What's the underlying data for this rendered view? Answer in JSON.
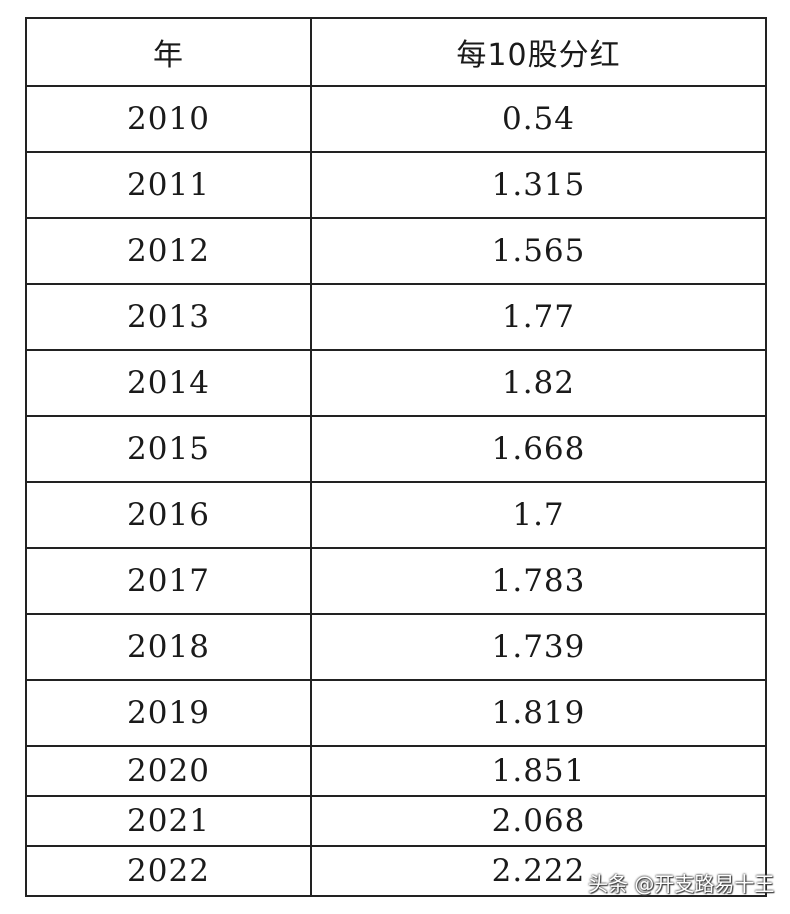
{
  "table": {
    "headers": {
      "year": "年",
      "dividend": "每10股分红"
    },
    "rows": [
      {
        "year": "2010",
        "value": "0.54"
      },
      {
        "year": "2011",
        "value": "1.315"
      },
      {
        "year": "2012",
        "value": "1.565"
      },
      {
        "year": "2013",
        "value": "1.77"
      },
      {
        "year": "2014",
        "value": "1.82"
      },
      {
        "year": "2015",
        "value": "1.668"
      },
      {
        "year": "2016",
        "value": "1.7"
      },
      {
        "year": "2017",
        "value": "1.783"
      },
      {
        "year": "2018",
        "value": "1.739"
      },
      {
        "year": "2019",
        "value": "1.819"
      },
      {
        "year": "2020",
        "value": "1.851"
      },
      {
        "year": "2021",
        "value": "2.068"
      },
      {
        "year": "2022",
        "value": "2.222"
      }
    ]
  },
  "watermark": {
    "text": "头条 @开支路易十王"
  }
}
